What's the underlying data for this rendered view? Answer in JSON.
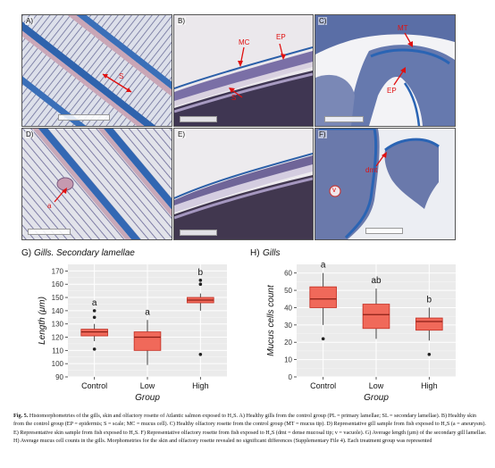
{
  "panels": [
    {
      "label": "A)",
      "arrows": [
        "S"
      ]
    },
    {
      "label": "B)",
      "arrows": [
        "MC",
        "EP",
        "S"
      ]
    },
    {
      "label": "C)",
      "arrows": [
        "MT",
        "EP"
      ]
    },
    {
      "label": "D)",
      "arrows": [
        "a"
      ]
    },
    {
      "label": "E)",
      "arrows": []
    },
    {
      "label": "F)",
      "arrows": [
        "dmt",
        "v"
      ]
    }
  ],
  "chart_data": [
    {
      "type": "box",
      "panel": "G)",
      "title": "Gills. Secondary lamellae",
      "xlabel": "Group",
      "ylabel": "Length (μm)",
      "ylim": [
        90,
        175
      ],
      "yticks": [
        90,
        100,
        110,
        120,
        130,
        140,
        150,
        160,
        170
      ],
      "categories": [
        "Control",
        "Low",
        "High"
      ],
      "boxes": [
        {
          "whisker_low": 117,
          "q1": 121,
          "median": 124,
          "q3": 126,
          "whisker_high": 130,
          "outliers": [
            111,
            135,
            140
          ],
          "letter": "a"
        },
        {
          "whisker_low": 99,
          "q1": 110,
          "median": 120,
          "q3": 124,
          "whisker_high": 133,
          "outliers": [],
          "letter": "a"
        },
        {
          "whisker_low": 140,
          "q1": 146,
          "median": 148,
          "q3": 150,
          "whisker_high": 153,
          "outliers": [
            107,
            160,
            163
          ],
          "letter": "b"
        }
      ]
    },
    {
      "type": "box",
      "panel": "H)",
      "title": "Gills",
      "xlabel": "Group",
      "ylabel": "Mucus cells count",
      "ylim": [
        0,
        65
      ],
      "yticks": [
        0,
        10,
        20,
        30,
        40,
        50,
        60
      ],
      "categories": [
        "Control",
        "Low",
        "High"
      ],
      "boxes": [
        {
          "whisker_low": 30,
          "q1": 40,
          "median": 45,
          "q3": 52,
          "whisker_high": 60,
          "outliers": [
            22
          ],
          "letter": "a"
        },
        {
          "whisker_low": 22,
          "q1": 28,
          "median": 36,
          "q3": 42,
          "whisker_high": 51,
          "outliers": [],
          "letter": "ab"
        },
        {
          "whisker_low": 21,
          "q1": 27,
          "median": 32,
          "q3": 34,
          "whisker_high": 40,
          "outliers": [
            13
          ],
          "letter": "b"
        }
      ]
    }
  ],
  "caption": {
    "fig_label": "Fig. 5.",
    "text": "Histomorphometries of the gills, skin and olfactory rosette of Atlantic salmon exposed to H₂S. A) Healthy gills from the control group (PL = primary lamellae; SL = secondary lamellae). B) Healthy skin from the control group (EP = epidermis; S = scale; MC = mucus cell). C) Healthy olfactory rosette from the control group (MT = mucus tip). D) Representative gill sample from fish exposed to H₂S (a = aneurysm). E) Representative skin sample from fish exposed to H₂S. F) Representative olfactory rosette from fish exposed to H₂S (dmt = dense mucosal tip; v = vacuole). G) Average length (µm) of the secondary gill lamellae. H) Average mucus cell counts in the gills. Morphometries for the skin and olfactory rosette revealed no significant differences (Supplementary File 4). Each treatment group was represented"
  },
  "colors": {
    "box_fill": "#f0695a",
    "box_edge": "#c8362a",
    "plot_bg": "#ebebeb",
    "arrow": "#e01010"
  }
}
